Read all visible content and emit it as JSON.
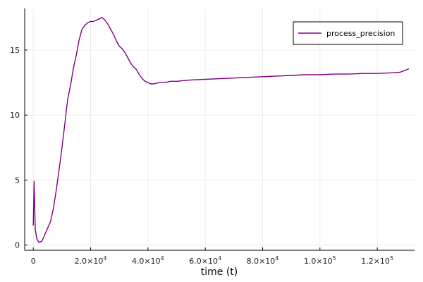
{
  "chart_data": {
    "type": "line",
    "title": "",
    "xlabel": "time (t)",
    "ylabel": "",
    "xlim": [
      -3000,
      133000
    ],
    "ylim": [
      -0.4,
      18.2
    ],
    "grid": true,
    "legend": "top-right",
    "x_ticks": [
      {
        "value": 0,
        "mantissa": "0",
        "exp": ""
      },
      {
        "value": 20000,
        "mantissa": "2.0×10",
        "exp": "4"
      },
      {
        "value": 40000,
        "mantissa": "4.0×10",
        "exp": "4"
      },
      {
        "value": 60000,
        "mantissa": "6.0×10",
        "exp": "4"
      },
      {
        "value": 80000,
        "mantissa": "8.0×10",
        "exp": "4"
      },
      {
        "value": 100000,
        "mantissa": "1.0×10",
        "exp": "5"
      },
      {
        "value": 120000,
        "mantissa": "1.2×10",
        "exp": "5"
      }
    ],
    "y_ticks": [
      {
        "value": 0,
        "label": "0"
      },
      {
        "value": 5,
        "label": "5"
      },
      {
        "value": 10,
        "label": "10"
      },
      {
        "value": 15,
        "label": "15"
      }
    ],
    "series": [
      {
        "name": "process_precision",
        "color": "#800080",
        "x": [
          0,
          300,
          700,
          1200,
          2000,
          3000,
          4000,
          5000,
          6000,
          7000,
          8000,
          9000,
          10000,
          11000,
          12000,
          13000,
          14000,
          15000,
          16000,
          17000,
          18000,
          19000,
          20000,
          21000,
          22000,
          23000,
          24000,
          25000,
          26000,
          27000,
          28000,
          29000,
          30000,
          31000,
          32000,
          33000,
          34000,
          35000,
          36000,
          37000,
          38000,
          39000,
          40000,
          41000,
          42000,
          44000,
          46000,
          48000,
          50000,
          55000,
          60000,
          65000,
          70000,
          75000,
          80000,
          85000,
          90000,
          95000,
          100000,
          105000,
          110000,
          115000,
          120000,
          125000,
          128000,
          131000
        ],
        "y": [
          1.5,
          4.9,
          1.2,
          0.5,
          0.2,
          0.3,
          0.8,
          1.3,
          1.8,
          2.8,
          4.2,
          5.8,
          7.5,
          9.3,
          11.2,
          12.3,
          13.6,
          14.6,
          15.8,
          16.6,
          16.9,
          17.1,
          17.2,
          17.2,
          17.3,
          17.4,
          17.5,
          17.3,
          17.0,
          16.6,
          16.2,
          15.7,
          15.3,
          15.1,
          14.8,
          14.4,
          14.0,
          13.7,
          13.5,
          13.1,
          12.8,
          12.6,
          12.5,
          12.4,
          12.4,
          12.5,
          12.5,
          12.6,
          12.6,
          12.7,
          12.75,
          12.8,
          12.85,
          12.9,
          12.95,
          13.0,
          13.05,
          13.1,
          13.1,
          13.15,
          13.15,
          13.2,
          13.2,
          13.25,
          13.3,
          13.55
        ]
      }
    ]
  }
}
